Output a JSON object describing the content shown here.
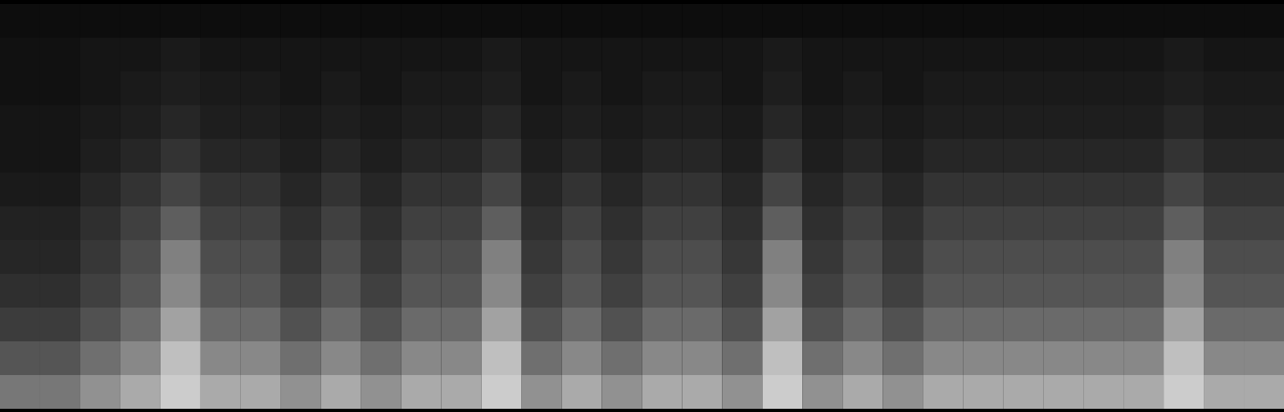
{
  "chart_data": {
    "type": "heatmap",
    "tick_labels": false,
    "zlim": [
      0,
      60
    ],
    "cells": [
      [
        3,
        3,
        3,
        3,
        3,
        3,
        3,
        3,
        3,
        3,
        3,
        3,
        3,
        3,
        3,
        3,
        3,
        3,
        3,
        3,
        3,
        3,
        3,
        3,
        3,
        3,
        3,
        3,
        3,
        3,
        3,
        3
      ],
      [
        4,
        4,
        5,
        5,
        6,
        5,
        5,
        5,
        5,
        5,
        5,
        5,
        6,
        5,
        5,
        5,
        5,
        5,
        5,
        6,
        5,
        5,
        5,
        5,
        5,
        5,
        5,
        5,
        5,
        6,
        5,
        5
      ],
      [
        4,
        4,
        5,
        6,
        7,
        6,
        6,
        5,
        6,
        5,
        6,
        6,
        7,
        5,
        6,
        5,
        6,
        6,
        5,
        7,
        5,
        6,
        5,
        6,
        6,
        6,
        6,
        6,
        6,
        7,
        6,
        6
      ],
      [
        5,
        5,
        6,
        7,
        9,
        7,
        7,
        6,
        7,
        6,
        7,
        7,
        9,
        6,
        7,
        6,
        7,
        7,
        6,
        9,
        6,
        7,
        6,
        7,
        7,
        7,
        7,
        7,
        7,
        9,
        7,
        7
      ],
      [
        5,
        5,
        7,
        9,
        12,
        9,
        9,
        7,
        9,
        7,
        9,
        9,
        12,
        7,
        9,
        7,
        9,
        9,
        7,
        12,
        7,
        9,
        7,
        9,
        9,
        9,
        9,
        9,
        9,
        12,
        9,
        9
      ],
      [
        6,
        6,
        9,
        12,
        16,
        12,
        12,
        9,
        12,
        9,
        12,
        12,
        16,
        9,
        12,
        9,
        12,
        12,
        9,
        16,
        9,
        12,
        9,
        12,
        12,
        12,
        12,
        12,
        12,
        16,
        12,
        12
      ],
      [
        8,
        8,
        11,
        15,
        22,
        15,
        15,
        11,
        15,
        11,
        15,
        15,
        22,
        11,
        15,
        11,
        15,
        15,
        11,
        22,
        11,
        15,
        11,
        15,
        15,
        15,
        15,
        15,
        15,
        22,
        15,
        15
      ],
      [
        9,
        9,
        13,
        18,
        30,
        18,
        18,
        13,
        18,
        13,
        18,
        18,
        30,
        13,
        18,
        13,
        18,
        18,
        13,
        30,
        13,
        18,
        13,
        18,
        18,
        18,
        18,
        18,
        18,
        30,
        18,
        18
      ],
      [
        11,
        11,
        15,
        20,
        32,
        20,
        20,
        15,
        20,
        15,
        20,
        20,
        32,
        15,
        20,
        15,
        20,
        20,
        15,
        32,
        15,
        20,
        15,
        20,
        20,
        20,
        20,
        20,
        20,
        32,
        20,
        20
      ],
      [
        14,
        14,
        19,
        25,
        38,
        25,
        25,
        19,
        25,
        19,
        25,
        25,
        38,
        19,
        25,
        19,
        25,
        25,
        19,
        38,
        19,
        25,
        19,
        25,
        25,
        25,
        25,
        25,
        25,
        38,
        25,
        25
      ],
      [
        20,
        20,
        26,
        32,
        45,
        32,
        32,
        26,
        32,
        26,
        32,
        32,
        45,
        26,
        32,
        26,
        32,
        32,
        26,
        45,
        26,
        32,
        26,
        32,
        32,
        32,
        32,
        32,
        32,
        45,
        32,
        32
      ],
      [
        28,
        28,
        34,
        40,
        48,
        40,
        40,
        34,
        40,
        34,
        40,
        40,
        48,
        34,
        40,
        34,
        40,
        40,
        34,
        48,
        34,
        40,
        34,
        40,
        40,
        40,
        40,
        40,
        40,
        48,
        40,
        40
      ]
    ]
  }
}
